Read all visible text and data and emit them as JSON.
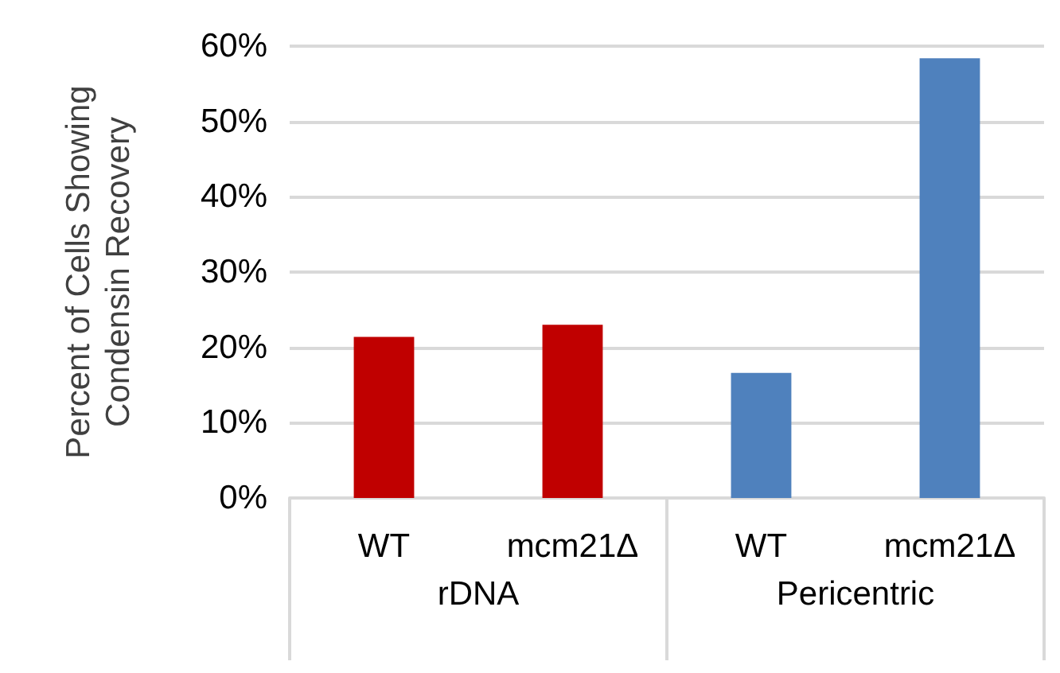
{
  "chart_data": {
    "type": "bar",
    "ylabel": "Percent of Cells Showing\nCondensin Recovery",
    "categories": [
      "WT",
      "mcm21Δ",
      "WT",
      "mcm21Δ"
    ],
    "values": [
      21.4,
      23.0,
      16.6,
      58.4
    ],
    "colors": [
      "#c00000",
      "#c00000",
      "#4f81bd",
      "#4f81bd"
    ],
    "annotations": [
      "rDNA",
      "Pericentric"
    ],
    "ylim": [
      0,
      60
    ],
    "yticks": [
      {
        "value": 0,
        "label": "0%"
      },
      {
        "value": 10,
        "label": "10%"
      },
      {
        "value": 20,
        "label": "20%"
      },
      {
        "value": 30,
        "label": "30%"
      },
      {
        "value": 40,
        "label": "40%"
      },
      {
        "value": 50,
        "label": "50%"
      },
      {
        "value": 60,
        "label": "60%"
      }
    ],
    "grid": true
  }
}
